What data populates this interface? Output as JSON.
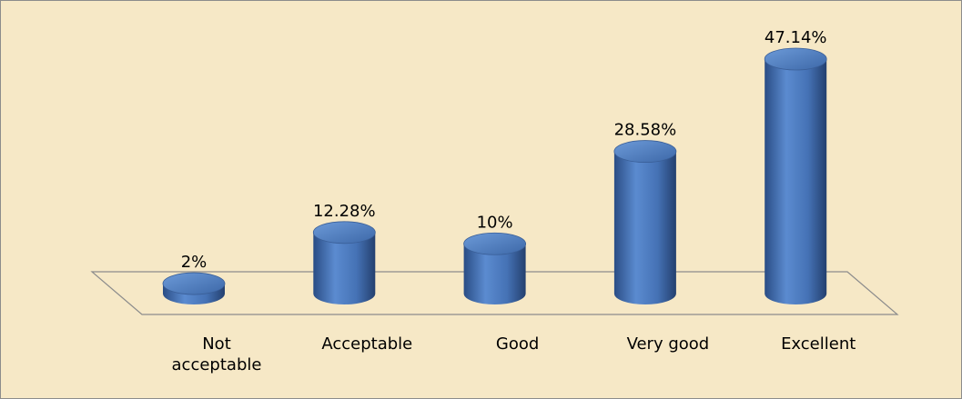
{
  "chart_data": {
    "type": "bar",
    "style": "3d-cylinder",
    "categories": [
      "Not acceptable",
      "Acceptable",
      "Good",
      "Very good",
      "Excellent"
    ],
    "values": [
      2,
      12.28,
      10,
      28.58,
      47.14
    ],
    "value_labels": [
      "2%",
      "12.28%",
      "10%",
      "28.58%",
      "47.14%"
    ],
    "color": "#4a77b9"
  }
}
